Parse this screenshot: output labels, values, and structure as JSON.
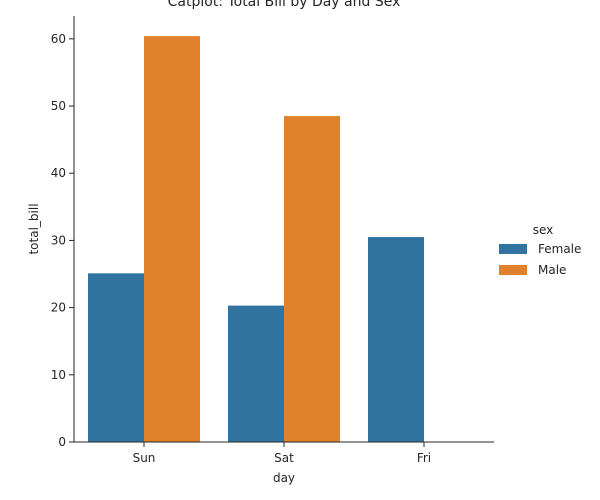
{
  "chart_data": {
    "type": "bar",
    "title": "Catplot: Total Bill by Day and Sex",
    "xlabel": "day",
    "ylabel": "total_bill",
    "categories": [
      "Sun",
      "Sat",
      "Fri"
    ],
    "series": [
      {
        "name": "Female",
        "color": "#3274a1",
        "values": [
          25.1,
          20.3,
          30.5
        ]
      },
      {
        "name": "Male",
        "color": "#e1812c",
        "values": [
          60.4,
          48.5,
          null
        ]
      }
    ],
    "ylim": [
      0,
      63.4
    ],
    "yticks": [
      0,
      10,
      20,
      30,
      40,
      50,
      60
    ],
    "legend": {
      "title": "sex",
      "placement": "right"
    },
    "grid": false
  }
}
